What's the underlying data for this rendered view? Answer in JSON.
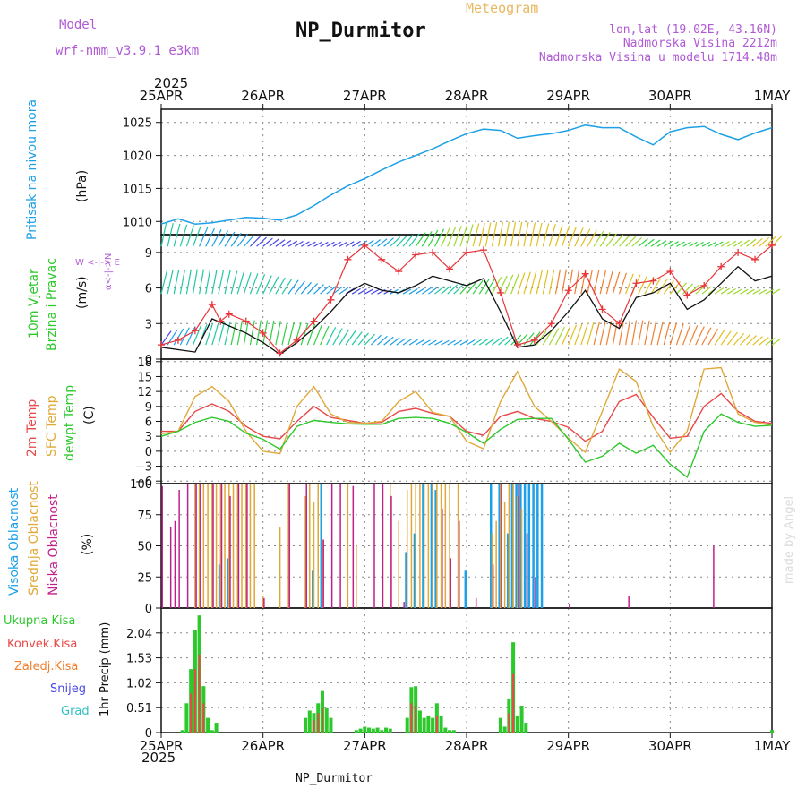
{
  "header": {
    "model_label": "Model",
    "model_name": "wrf-nmm_v3.9.1 e3km",
    "title": "NP_Durmitor",
    "subtitle": "Meteogram",
    "coords": "lon,lat (19.02E, 43.16N)",
    "elevation": "Nadmorska Visina 2212m",
    "model_elevation": "Nadmorska Visina u modelu 1714.48m",
    "footer_station": "NP_Durmitor",
    "watermark": "made by Angel"
  },
  "x_axis": {
    "year": "2025",
    "ticks": [
      "25APR",
      "26APR",
      "27APR",
      "28APR",
      "29APR",
      "30APR",
      "1MAY"
    ]
  },
  "panels": {
    "pressure": {
      "label1": "Pritisak na nivou mora",
      "label2": "(hPa)"
    },
    "wind": {
      "label1": "10m Vjetar",
      "label2": "Brzina i Pravac",
      "label3": "(m/s)",
      "compass_ns": "α<-|->N",
      "compass_we": "W <-|-> E"
    },
    "temp": {
      "label1": "2m Temp",
      "label2": "SFC Temp",
      "label3": "dewpt Temp",
      "label4": "(C)"
    },
    "cloud": {
      "label1": "Visoka Oblacnost",
      "label2": "Srednja Oblacnost",
      "label3": "Niska Oblacnost",
      "label4": "(%)"
    },
    "precip": {
      "legend": [
        "Ukupna Kisa",
        "Konvek.Kisa",
        "Zaledj.Kisa",
        "Snijeg",
        "Grad"
      ],
      "ylabel": "1hr Precip (mm)"
    }
  },
  "colors": {
    "pressure": "#1ca0e6",
    "wind_speed": "#e8343a",
    "wind_gust": "#111111",
    "temp2m": "#e84848",
    "sfc": "#e0a838",
    "dew": "#2cc82c",
    "high_cloud": "#1ca0e6",
    "mid_cloud": "#e0a838",
    "low_cloud": "#c0208a",
    "total_rain": "#2cc82c",
    "conv_rain": "#e84848",
    "frz_rain": "#f08030",
    "snow": "#4848e8",
    "hail": "#30c0c0"
  },
  "chart_data": [
    {
      "type": "line",
      "title": "Pritisak na nivou mora",
      "ylabel": "(hPa)",
      "ylim": [
        1008,
        1027
      ],
      "yticks": [
        "1010",
        "1015",
        "1020",
        "1025"
      ],
      "series": [
        {
          "name": "MSLP",
          "x": [
            0,
            4,
            8,
            12,
            16,
            20,
            24,
            28,
            32,
            36,
            40,
            44,
            48,
            52,
            56,
            60,
            64,
            68,
            72,
            76,
            80,
            84,
            88,
            92,
            96,
            100,
            104,
            108,
            112,
            116,
            120,
            124,
            128,
            132,
            136,
            140,
            144
          ],
          "values": [
            1009.6,
            1010.4,
            1009.6,
            1009.8,
            1010.2,
            1010.6,
            1010.5,
            1010.2,
            1011.0,
            1012.4,
            1014.0,
            1015.4,
            1016.5,
            1017.8,
            1019.0,
            1020.0,
            1021.0,
            1022.2,
            1023.3,
            1024.0,
            1023.8,
            1022.6,
            1023.0,
            1023.3,
            1023.8,
            1024.6,
            1024.2,
            1024.2,
            1022.8,
            1021.6,
            1023.6,
            1024.2,
            1024.4,
            1023.2,
            1022.4,
            1023.4,
            1024.2
          ]
        }
      ]
    },
    {
      "type": "line",
      "title": "10m Vjetar Brzina i Pravac",
      "ylabel": "(m/s)",
      "ylim": [
        0,
        10.5
      ],
      "yticks": [
        "0",
        "3",
        "6",
        "9"
      ],
      "series": [
        {
          "name": "wind speed",
          "x": [
            0,
            4,
            8,
            12,
            14,
            16,
            20,
            24,
            28,
            32,
            36,
            40,
            44,
            48,
            52,
            56,
            60,
            64,
            68,
            72,
            76,
            80,
            84,
            88,
            92,
            96,
            100,
            104,
            108,
            112,
            116,
            120,
            124,
            128,
            132,
            136,
            140,
            144
          ],
          "values": [
            1.2,
            1.6,
            2.4,
            4.6,
            3.2,
            3.8,
            3.2,
            2.2,
            0.5,
            1.6,
            3.2,
            5.0,
            8.4,
            9.6,
            8.4,
            7.4,
            8.8,
            9.0,
            7.6,
            9.0,
            9.2,
            5.6,
            1.2,
            1.6,
            3.0,
            5.8,
            7.2,
            4.2,
            3.0,
            6.4,
            6.6,
            7.4,
            5.4,
            6.2,
            7.8,
            9.0,
            8.4,
            9.6
          ]
        },
        {
          "name": "gust",
          "x": [
            0,
            8,
            12,
            16,
            20,
            24,
            28,
            32,
            36,
            40,
            44,
            48,
            52,
            56,
            60,
            64,
            68,
            72,
            76,
            80,
            84,
            88,
            92,
            96,
            100,
            104,
            108,
            112,
            116,
            120,
            124,
            128,
            132,
            136,
            140,
            144
          ],
          "values": [
            1.0,
            0.6,
            3.4,
            2.8,
            2.2,
            1.4,
            0.4,
            1.4,
            2.6,
            4.0,
            5.6,
            6.4,
            5.8,
            5.6,
            6.2,
            7.0,
            6.6,
            6.2,
            6.8,
            4.0,
            1.0,
            1.2,
            2.4,
            4.0,
            5.8,
            3.4,
            2.6,
            5.2,
            5.6,
            6.4,
            4.2,
            5.0,
            6.4,
            7.8,
            6.6,
            7.0
          ]
        }
      ]
    },
    {
      "type": "line",
      "title": "Temperature",
      "ylabel": "(C)",
      "ylim": [
        -6.5,
        18.5
      ],
      "yticks": [
        "−6",
        "−3",
        "0",
        "3",
        "6",
        "9",
        "12",
        "15",
        "18"
      ],
      "series": [
        {
          "name": "2m Temp",
          "x": [
            0,
            4,
            8,
            12,
            16,
            20,
            24,
            28,
            32,
            36,
            40,
            44,
            48,
            52,
            56,
            60,
            64,
            68,
            72,
            76,
            80,
            84,
            88,
            92,
            96,
            100,
            104,
            108,
            112,
            116,
            120,
            124,
            128,
            132,
            136,
            140,
            144
          ],
          "values": [
            4,
            4,
            8,
            9.5,
            8,
            5,
            3,
            2.5,
            6,
            9,
            6.8,
            6.2,
            5.6,
            5.8,
            8,
            8.6,
            7.6,
            7,
            4,
            3.2,
            7,
            8,
            6.6,
            6,
            4.8,
            2,
            4,
            10,
            11.4,
            6.8,
            2.6,
            3,
            9,
            11.6,
            8,
            6,
            5.6
          ]
        },
        {
          "name": "SFC Temp",
          "x": [
            0,
            4,
            8,
            12,
            16,
            20,
            24,
            28,
            32,
            36,
            40,
            44,
            48,
            52,
            56,
            60,
            64,
            68,
            72,
            76,
            80,
            84,
            88,
            92,
            96,
            100,
            104,
            108,
            112,
            116,
            120,
            124,
            128,
            132,
            136,
            140,
            144
          ],
          "values": [
            3.5,
            4,
            11,
            13,
            10,
            4,
            0,
            -0.5,
            9,
            13,
            7.5,
            5.8,
            5.6,
            6,
            10,
            12,
            7.8,
            7,
            2,
            0.5,
            10,
            16,
            9,
            6,
            2.6,
            -0.2,
            8,
            16.5,
            14,
            5,
            -0.2,
            4,
            16.5,
            16.8,
            7.5,
            5.8,
            5.2
          ]
        },
        {
          "name": "dewpt Temp",
          "x": [
            0,
            4,
            8,
            12,
            16,
            20,
            24,
            28,
            32,
            36,
            40,
            44,
            48,
            52,
            56,
            60,
            64,
            68,
            72,
            76,
            80,
            84,
            88,
            92,
            96,
            100,
            104,
            108,
            112,
            116,
            120,
            124,
            128,
            132,
            136,
            140,
            144
          ],
          "values": [
            3,
            4,
            5.8,
            6.8,
            6,
            3.6,
            2.4,
            0.4,
            5,
            6.2,
            5.8,
            5.5,
            5.4,
            5.4,
            6.6,
            6.8,
            6.6,
            5.6,
            3.8,
            1.6,
            4.4,
            6.4,
            6.6,
            6.6,
            2.4,
            -2.2,
            -1,
            1.6,
            -0.4,
            1.2,
            -2.6,
            -5.2,
            4,
            7.5,
            5.8,
            5,
            5.2
          ]
        }
      ]
    },
    {
      "type": "bar",
      "title": "Oblacnost",
      "ylabel": "(%)",
      "ylim": [
        0,
        100
      ],
      "yticks": [
        "0",
        "25",
        "50",
        "75",
        "100"
      ],
      "series": [
        {
          "name": "Visoka Oblacnost",
          "x": [
            14,
            16,
            36,
            38,
            58,
            60,
            62,
            64,
            65,
            72,
            78,
            80,
            82,
            83,
            84,
            85,
            86,
            87,
            88,
            89,
            90
          ],
          "values": [
            35,
            40,
            30,
            100,
            45,
            60,
            100,
            100,
            95,
            30,
            100,
            100,
            60,
            100,
            100,
            100,
            100,
            100,
            100,
            100,
            100
          ]
        },
        {
          "name": "Srednja Oblacnost",
          "x": [
            8,
            9,
            10,
            11,
            12,
            13,
            14,
            15,
            16,
            17,
            18,
            19,
            20,
            21,
            22,
            24,
            28,
            30,
            34,
            35,
            36,
            37,
            38,
            44,
            46,
            54,
            56,
            58,
            59,
            60,
            61,
            62,
            63,
            64,
            65,
            66,
            67,
            68,
            70,
            78,
            79,
            80,
            81,
            82,
            83,
            84,
            85
          ],
          "values": [
            100,
            100,
            100,
            100,
            100,
            100,
            100,
            100,
            100,
            100,
            100,
            100,
            100,
            100,
            100,
            10,
            65,
            100,
            90,
            100,
            85,
            100,
            55,
            100,
            50,
            100,
            70,
            95,
            100,
            100,
            100,
            100,
            100,
            100,
            100,
            100,
            100,
            100,
            100,
            60,
            70,
            100,
            85,
            100,
            100,
            90,
            80
          ]
        },
        {
          "name": "Niska Oblacnost",
          "x": [
            0,
            2,
            3,
            4,
            6,
            8,
            9,
            12,
            14,
            16,
            18,
            20,
            24,
            30,
            34,
            38,
            40,
            42,
            45,
            50,
            52,
            54,
            57,
            66,
            68,
            70,
            74,
            78,
            80,
            84,
            86,
            88,
            96,
            110,
            130
          ],
          "values": [
            98,
            65,
            70,
            95,
            100,
            100,
            100,
            100,
            100,
            90,
            100,
            100,
            8,
            100,
            100,
            55,
            100,
            100,
            98,
            100,
            100,
            90,
            5,
            80,
            40,
            70,
            8,
            35,
            100,
            100,
            60,
            25,
            3,
            10,
            50
          ]
        }
      ]
    },
    {
      "type": "bar",
      "title": "1hr Precip",
      "ylabel": "1hr Precip (mm)",
      "ylim": [
        0,
        2.55
      ],
      "yticks": [
        "0",
        "0.51",
        "1.02",
        "1.53",
        "2.04"
      ],
      "series": [
        {
          "name": "Ukupna Kisa",
          "x": [
            5,
            6,
            7,
            8,
            9,
            10,
            11,
            12,
            13,
            34,
            35,
            36,
            37,
            38,
            39,
            40,
            46,
            47,
            48,
            49,
            50,
            51,
            52,
            53,
            54,
            58,
            59,
            60,
            61,
            62,
            63,
            64,
            65,
            66,
            67,
            68,
            69,
            80,
            81,
            82,
            83,
            84,
            85,
            86,
            144
          ],
          "values": [
            0.05,
            0.6,
            1.3,
            2.1,
            2.4,
            0.95,
            0.3,
            0.05,
            0.2,
            0.3,
            0.45,
            0.4,
            0.6,
            0.85,
            0.5,
            0.3,
            0.05,
            0.08,
            0.12,
            0.1,
            0.08,
            0.1,
            0.05,
            0.1,
            0.08,
            0.3,
            0.93,
            0.95,
            0.45,
            0.3,
            0.35,
            0.3,
            0.6,
            0.35,
            0.1,
            0.05,
            0.05,
            0.3,
            0.12,
            0.7,
            1.85,
            0.35,
            0.55,
            0.2,
            0.05
          ]
        },
        {
          "name": "Konvek.Kisa",
          "x": [
            7,
            8,
            9,
            10,
            36,
            37,
            38,
            59,
            60,
            65,
            82,
            83
          ],
          "values": [
            0.8,
            1.3,
            1.6,
            0.6,
            0.25,
            0.4,
            0.5,
            0.6,
            0.55,
            0.35,
            0.4,
            1.2
          ]
        }
      ]
    }
  ]
}
